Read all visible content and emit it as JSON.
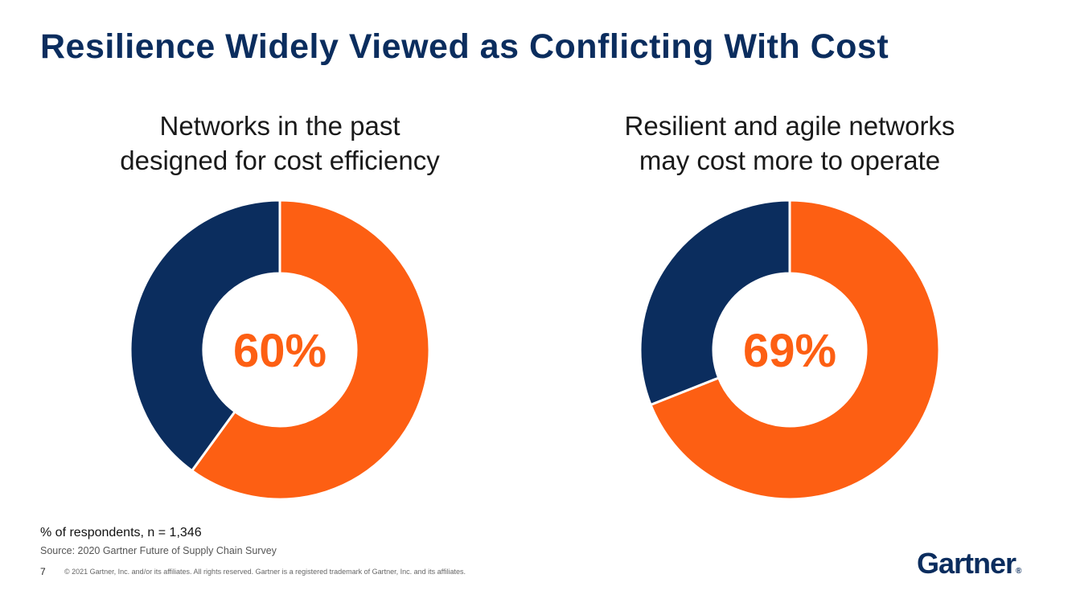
{
  "title": "Resilience Widely Viewed as Conflicting With Cost",
  "colors": {
    "primary": "#fd5f13",
    "secondary": "#0b2d5e"
  },
  "chart_data": [
    {
      "type": "pie",
      "title_lines": [
        "Networks in the past",
        "designed for cost efficiency"
      ],
      "center_label": "60%",
      "slices": [
        {
          "value": 60,
          "color": "#fd5f13"
        },
        {
          "value": 40,
          "color": "#0b2d5e"
        }
      ]
    },
    {
      "type": "pie",
      "title_lines": [
        "Resilient and agile networks",
        "may cost more to operate"
      ],
      "center_label": "69%",
      "slices": [
        {
          "value": 69,
          "color": "#fd5f13"
        },
        {
          "value": 31,
          "color": "#0b2d5e"
        }
      ]
    }
  ],
  "footnote": "% of respondents, n = 1,346",
  "source": "Source: 2020 Gartner Future of Supply Chain Survey",
  "page_number": "7",
  "copyright": "© 2021 Gartner, Inc. and/or its affiliates. All rights reserved. Gartner is a registered trademark of Gartner, Inc. and its affiliates.",
  "logo": {
    "text": "Gartner",
    "mark": "®"
  }
}
